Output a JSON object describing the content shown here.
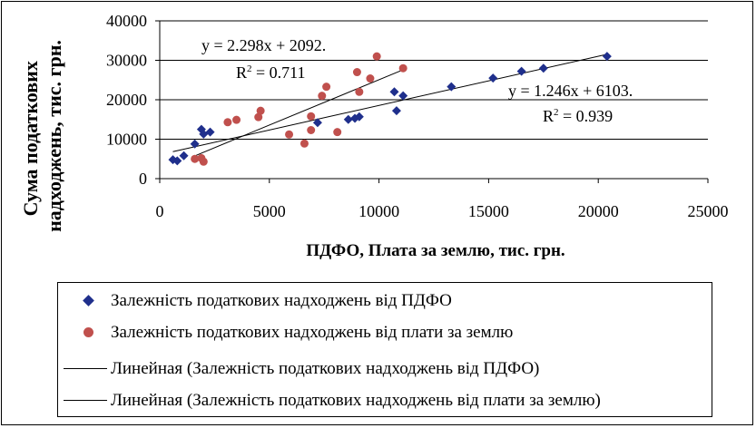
{
  "chart_data": {
    "type": "scatter",
    "title": "",
    "xlabel": "ПДФО, Плата за землю, тис. грн.",
    "ylabel": "Сума податкових надходжень, тис. грн.",
    "xlim": [
      0,
      25000
    ],
    "ylim": [
      0,
      40000
    ],
    "x_ticks": [
      "0",
      "5000",
      "10000",
      "15000",
      "20000",
      "25000"
    ],
    "y_ticks": [
      "0",
      "10000",
      "20000",
      "30000",
      "40000"
    ],
    "grid": "horizontal",
    "legend_position": "bottom",
    "series": [
      {
        "name": "Залежність податкових надходжень від ПДФО",
        "marker": "diamond",
        "color": "#1f2f8c",
        "points": [
          [
            600,
            4800
          ],
          [
            800,
            4500
          ],
          [
            1100,
            5800
          ],
          [
            1600,
            8800
          ],
          [
            1900,
            12500
          ],
          [
            2000,
            11300
          ],
          [
            2300,
            11800
          ],
          [
            7200,
            14200
          ],
          [
            8600,
            15000
          ],
          [
            8900,
            15300
          ],
          [
            9100,
            15700
          ],
          [
            10700,
            22000
          ],
          [
            10800,
            17200
          ],
          [
            11100,
            21000
          ],
          [
            13300,
            23300
          ],
          [
            15200,
            25500
          ],
          [
            16500,
            27200
          ],
          [
            17500,
            28000
          ],
          [
            20400,
            31000
          ]
        ]
      },
      {
        "name": "Залежність податкових надходжень від плати за землю",
        "marker": "circle",
        "color": "#c0504d",
        "points": [
          [
            1600,
            5000
          ],
          [
            1900,
            5200
          ],
          [
            2000,
            4300
          ],
          [
            3100,
            14300
          ],
          [
            3500,
            14900
          ],
          [
            4500,
            15600
          ],
          [
            4600,
            17200
          ],
          [
            5900,
            11200
          ],
          [
            6600,
            8900
          ],
          [
            6900,
            12300
          ],
          [
            6900,
            15800
          ],
          [
            7400,
            21000
          ],
          [
            7600,
            23300
          ],
          [
            8100,
            11800
          ],
          [
            9000,
            27000
          ],
          [
            9100,
            22000
          ],
          [
            9600,
            25400
          ],
          [
            9900,
            31000
          ],
          [
            11100,
            28000
          ]
        ]
      }
    ],
    "trendlines": [
      {
        "name": "Линейная (Залежність податкових надходжень від ПДФО)",
        "slope": 1.246,
        "intercept": 6103,
        "x_range": [
          600,
          20400
        ],
        "equation": "y = 1.246x + 6103.",
        "r2_prefix": "R",
        "r2_sup": "2",
        "r2_value": " = 0.939"
      },
      {
        "name": "Линейная (Залежність податкових надходжень від плати за землю)",
        "slope": 2.298,
        "intercept": 2092,
        "x_range": [
          1600,
          11100
        ],
        "equation": "y = 2.298x + 2092.",
        "r2_prefix": "R",
        "r2_sup": "2",
        "r2_value": " = 0.711"
      }
    ]
  },
  "legend": {
    "items": [
      {
        "label": "Залежність податкових надходжень від ПДФО"
      },
      {
        "label": "Залежність податкових надходжень від плати за землю"
      },
      {
        "label": "Линейная (Залежність податкових надходжень від ПДФО)"
      },
      {
        "label": "Линейная (Залежність податкових надходжень від плати за землю)"
      }
    ]
  }
}
